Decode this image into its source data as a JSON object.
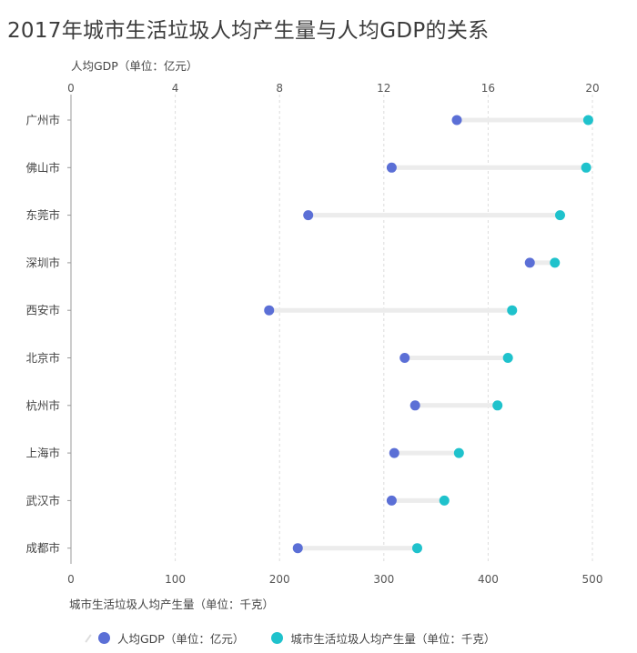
{
  "title": "2017年城市生活垃圾人均产生量与人均GDP的关系",
  "colors": {
    "gdp": "#5b6fd6",
    "waste": "#1fc2cc",
    "connector": "#ececec",
    "grid": "#dcdcdc",
    "axis": "#999999"
  },
  "chart_data": {
    "type": "dumbbell",
    "title": "2017年城市生活垃圾人均产生量与人均GDP的关系",
    "categories": [
      "广州市",
      "佛山市",
      "东莞市",
      "深圳市",
      "西安市",
      "北京市",
      "杭州市",
      "上海市",
      "武汉市",
      "成都市"
    ],
    "top_axis": {
      "label": "人均GDP（单位：亿元）",
      "range": [
        0,
        20
      ],
      "ticks": [
        0,
        4,
        8,
        12,
        16,
        20
      ]
    },
    "bottom_axis": {
      "label": "城市生活垃圾人均产生量（单位：千克）",
      "range": [
        0,
        500
      ],
      "ticks": [
        0,
        100,
        200,
        300,
        400,
        500
      ]
    },
    "series": [
      {
        "name": "人均GDP（单位：亿元）",
        "axis": "top",
        "values": [
          14.8,
          12.3,
          9.1,
          17.6,
          7.6,
          12.8,
          13.2,
          12.4,
          12.3,
          8.7
        ]
      },
      {
        "name": "城市生活垃圾人均产生量（单位：千克）",
        "axis": "bottom",
        "values": [
          496,
          494,
          469,
          464,
          423,
          419,
          409,
          372,
          358,
          332
        ]
      }
    ],
    "grid": true,
    "legend": "bottom-left"
  }
}
